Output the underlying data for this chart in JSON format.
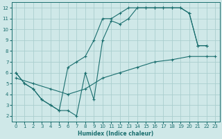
{
  "xlabel": "Humidex (Indice chaleur)",
  "bg_color": "#cfe8e8",
  "grid_color": "#aacece",
  "line_color": "#1a6e6e",
  "xlim": [
    -0.5,
    23.5
  ],
  "ylim": [
    1.5,
    12.5
  ],
  "xticks": [
    0,
    1,
    2,
    3,
    4,
    5,
    6,
    7,
    8,
    9,
    10,
    11,
    12,
    13,
    14,
    15,
    16,
    17,
    18,
    19,
    20,
    21,
    22,
    23
  ],
  "yticks": [
    2,
    3,
    4,
    5,
    6,
    7,
    8,
    9,
    10,
    11,
    12
  ],
  "line1_x": [
    0,
    1,
    2,
    3,
    4,
    5,
    6,
    7,
    8,
    9,
    10,
    11,
    12,
    13,
    14,
    15,
    16,
    17,
    18,
    19,
    20,
    21,
    22
  ],
  "line1_y": [
    6,
    5,
    4.5,
    3.5,
    3,
    2.5,
    2.5,
    2,
    6,
    3.5,
    9,
    10.8,
    10.5,
    11,
    12,
    12,
    12,
    12,
    12,
    12,
    11.5,
    8.5,
    8.5
  ],
  "line2_x": [
    0,
    1,
    2,
    3,
    4,
    5,
    6,
    7,
    8,
    9,
    10,
    11,
    12,
    13,
    14,
    15,
    16,
    17,
    18,
    19,
    20,
    21,
    22
  ],
  "line2_y": [
    6,
    5,
    4.5,
    3.5,
    3,
    2.5,
    6.5,
    7,
    7.5,
    9,
    11,
    11,
    11.5,
    12,
    12,
    12,
    12,
    12,
    12,
    12,
    11.5,
    8.5,
    8.5
  ],
  "line3_x": [
    0,
    2,
    4,
    6,
    8,
    10,
    12,
    14,
    16,
    18,
    20,
    22,
    23
  ],
  "line3_y": [
    5.5,
    5.0,
    4.5,
    4.0,
    4.5,
    5.5,
    6.0,
    6.5,
    7.0,
    7.2,
    7.5,
    7.5,
    7.5
  ]
}
